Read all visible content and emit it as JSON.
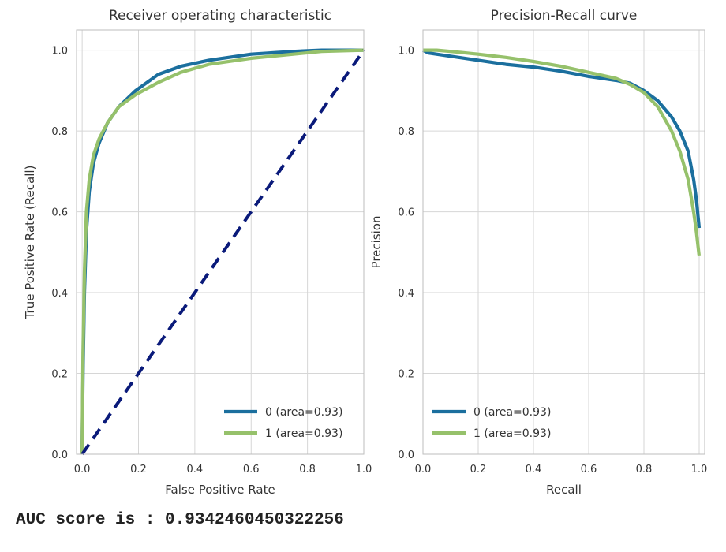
{
  "colors": {
    "class0": "#1b6f9e",
    "class1": "#96c16b",
    "diagonal": "#0a1a7a",
    "grid": "#d6d6d6",
    "panel_border": "#bdbdbd"
  },
  "chart_data": [
    {
      "type": "line",
      "title": "Receiver operating characteristic",
      "xlabel": "False Positive Rate",
      "ylabel": "True Positive Rate (Recall)",
      "xlim": [
        -0.02,
        1.0
      ],
      "ylim": [
        0.0,
        1.05
      ],
      "xticks": [
        "0.0",
        "0.2",
        "0.4",
        "0.6",
        "0.8",
        "1.0"
      ],
      "yticks": [
        "0.0",
        "0.2",
        "0.4",
        "0.6",
        "0.8",
        "1.0"
      ],
      "grid": true,
      "legend_position": "lower-right",
      "series": [
        {
          "name": "0 (area=0.93)",
          "color_key": "class0",
          "x": [
            0.0,
            0.003,
            0.008,
            0.015,
            0.025,
            0.04,
            0.06,
            0.09,
            0.13,
            0.19,
            0.27,
            0.35,
            0.45,
            0.6,
            0.75,
            0.85,
            1.0
          ],
          "y": [
            0.0,
            0.2,
            0.4,
            0.55,
            0.65,
            0.72,
            0.77,
            0.82,
            0.86,
            0.9,
            0.94,
            0.96,
            0.975,
            0.99,
            0.997,
            1.0,
            1.0
          ]
        },
        {
          "name": "1 (area=0.93)",
          "color_key": "class1",
          "x": [
            0.0,
            0.003,
            0.008,
            0.015,
            0.025,
            0.04,
            0.06,
            0.09,
            0.13,
            0.19,
            0.27,
            0.35,
            0.45,
            0.6,
            0.75,
            0.85,
            1.0
          ],
          "y": [
            0.0,
            0.25,
            0.45,
            0.6,
            0.68,
            0.74,
            0.78,
            0.82,
            0.86,
            0.89,
            0.92,
            0.945,
            0.965,
            0.98,
            0.99,
            0.997,
            1.0
          ]
        },
        {
          "name": "",
          "color_key": "diagonal",
          "dashed": true,
          "x": [
            0.0,
            1.0
          ],
          "y": [
            0.0,
            1.0
          ]
        }
      ]
    },
    {
      "type": "line",
      "title": "Precision-Recall curve",
      "xlabel": "Recall",
      "ylabel": "Precision",
      "xlim": [
        0.0,
        1.02
      ],
      "ylim": [
        0.0,
        1.05
      ],
      "xticks": [
        "0.0",
        "0.2",
        "0.4",
        "0.6",
        "0.8",
        "1.0"
      ],
      "yticks": [
        "0.0",
        "0.2",
        "0.4",
        "0.6",
        "0.8",
        "1.0"
      ],
      "grid": true,
      "legend_position": "lower-left",
      "series": [
        {
          "name": "0 (area=0.93)",
          "color_key": "class0",
          "x": [
            0.0,
            0.02,
            0.1,
            0.2,
            0.3,
            0.4,
            0.5,
            0.6,
            0.7,
            0.75,
            0.8,
            0.85,
            0.9,
            0.93,
            0.96,
            0.98,
            0.99,
            1.0
          ],
          "y": [
            1.0,
            0.993,
            0.985,
            0.975,
            0.965,
            0.958,
            0.948,
            0.935,
            0.925,
            0.918,
            0.9,
            0.875,
            0.835,
            0.8,
            0.75,
            0.68,
            0.63,
            0.56
          ]
        },
        {
          "name": "1 (area=0.93)",
          "color_key": "class1",
          "x": [
            0.0,
            0.05,
            0.1,
            0.2,
            0.3,
            0.4,
            0.5,
            0.6,
            0.7,
            0.75,
            0.8,
            0.85,
            0.9,
            0.93,
            0.96,
            0.98,
            0.99,
            1.0
          ],
          "y": [
            1.0,
            1.0,
            0.997,
            0.99,
            0.982,
            0.972,
            0.96,
            0.945,
            0.93,
            0.915,
            0.895,
            0.86,
            0.8,
            0.75,
            0.68,
            0.6,
            0.55,
            0.49
          ]
        }
      ]
    }
  ],
  "output": {
    "text": "AUC score is : 0.9342460450322256"
  }
}
